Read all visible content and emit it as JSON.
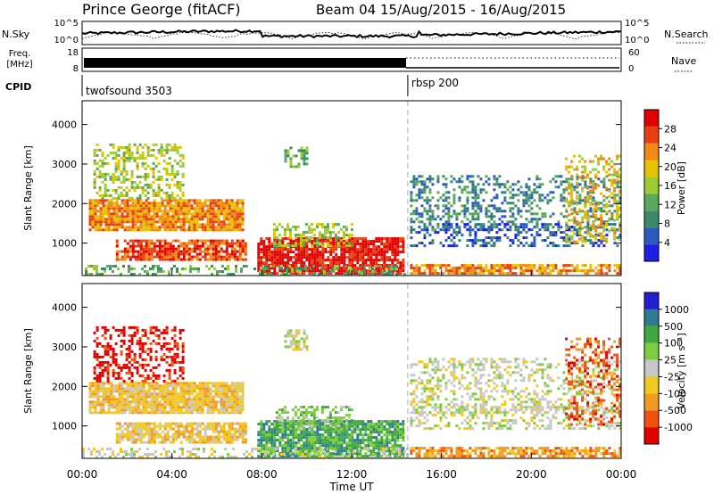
{
  "header": {
    "title": "Prince George (fitACF)",
    "beam_info": "Beam 04 15/Aug/2015 - 16/Aug/2015"
  },
  "strip_labels": {
    "nsky": "N.Sky",
    "freq_line1": "Freq.",
    "freq_line2": "[MHz]",
    "cpid": "CPID",
    "nsearch": "N.Search",
    "nave": "Nave"
  },
  "strip_ticks": {
    "nsky_top": "10^5",
    "nsky_bottom": "10^0",
    "nsearch_top": "10^5",
    "nsearch_bottom": "10^0",
    "freq_top": "18",
    "freq_bottom": "8",
    "nave_top": "60",
    "nave_bottom": "0"
  },
  "cpid": {
    "segments": [
      {
        "label": "twofsound 3503",
        "start_hour": 0
      },
      {
        "label": "rbsp 200",
        "start_hour": 14.5
      }
    ]
  },
  "colors": {
    "power": [
      "#1e1ee6",
      "#2c5dbe",
      "#3a8a6a",
      "#5aa85a",
      "#9acd32",
      "#e6c200",
      "#f08a10",
      "#e84010",
      "#e00000"
    ],
    "velocity": [
      "#e00000",
      "#f05010",
      "#f09a20",
      "#f0c820",
      "#c8c8c8",
      "#80cc40",
      "#40a840",
      "#2e7a8e",
      "#2020d0"
    ]
  },
  "chart_data": [
    {
      "type": "heatmap",
      "name": "power",
      "xlabel": "",
      "ylabel": "Slant Range [km]",
      "colorbar_label": "Power [dB]",
      "colorbar_ticks": [
        "4",
        "8",
        "12",
        "16",
        "20",
        "24",
        "28"
      ],
      "x_range_hours": [
        0,
        24
      ],
      "ylim": [
        180,
        4600
      ],
      "yticks": [
        "1000",
        "2000",
        "3000",
        "4000"
      ],
      "yticks_values": [
        1000,
        2000,
        3000,
        4000
      ],
      "xticks": [
        "00:00",
        "04:00",
        "08:00",
        "12:00",
        "16:00",
        "20:00",
        "00:00"
      ],
      "xticks_values": [
        0,
        4,
        8,
        12,
        16,
        20,
        24
      ]
    },
    {
      "type": "heatmap",
      "name": "velocity",
      "xlabel": "Time UT",
      "ylabel": "Slant Range [km]",
      "colorbar_label": "Velocity [m s⁻¹]",
      "colorbar_ticks": [
        "1000",
        "500",
        "100",
        "25",
        "-25",
        "-100",
        "-500",
        "-1000"
      ],
      "x_range_hours": [
        0,
        24
      ],
      "ylim": [
        180,
        4600
      ],
      "yticks": [
        "1000",
        "2000",
        "3000",
        "4000"
      ],
      "yticks_values": [
        1000,
        2000,
        3000,
        4000
      ],
      "xticks": [
        "00:00",
        "04:00",
        "08:00",
        "12:00",
        "16:00",
        "20:00",
        "00:00"
      ],
      "xticks_values": [
        0,
        4,
        8,
        12,
        16,
        20,
        24
      ]
    }
  ]
}
